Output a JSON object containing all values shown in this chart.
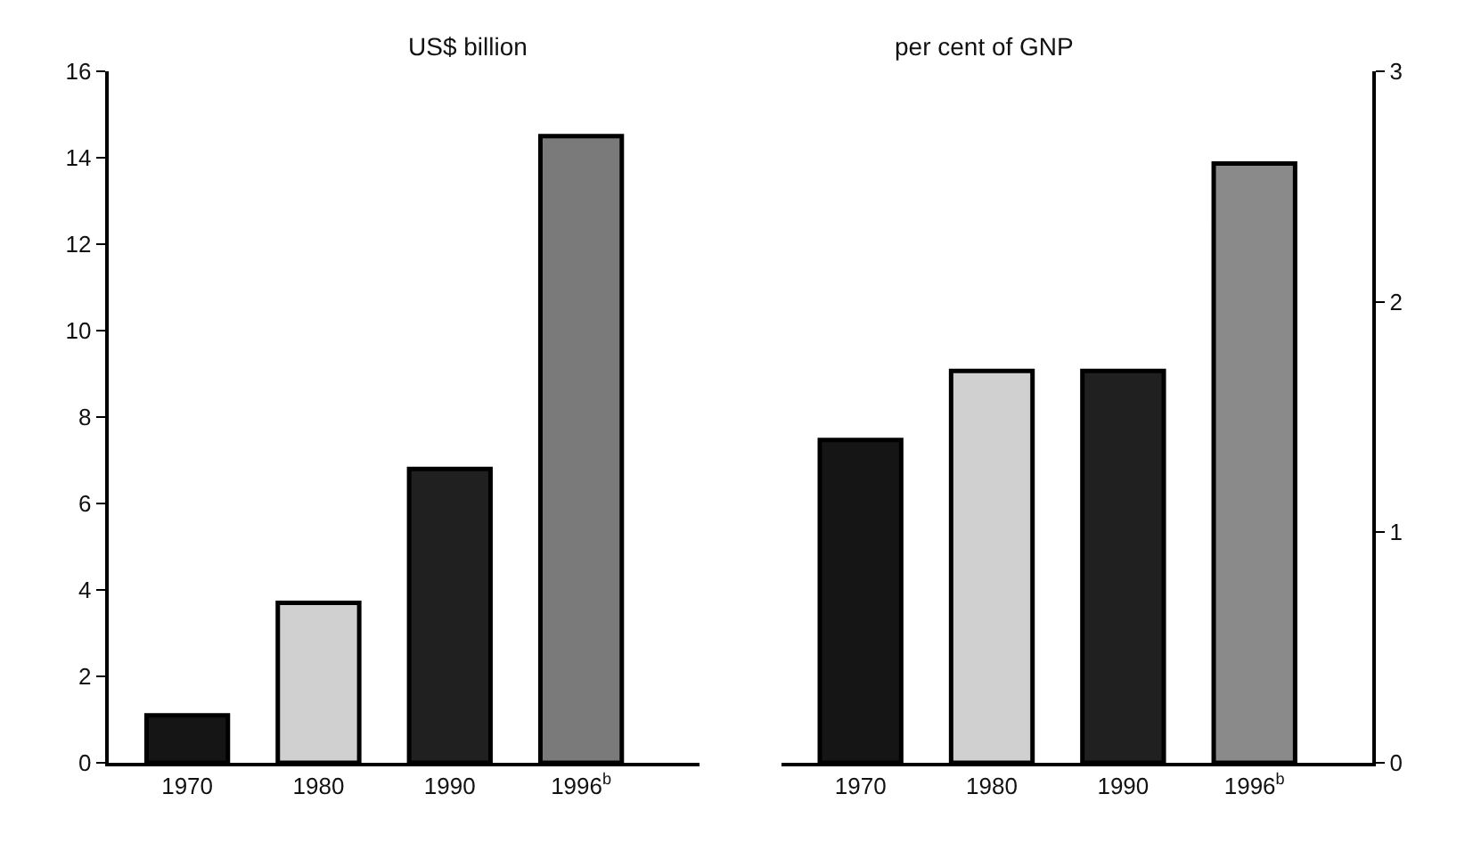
{
  "chart_data": [
    {
      "type": "bar",
      "title": "US$ billion",
      "categories": [
        "1970",
        "1980",
        "1990",
        "1996$^{b}$"
      ],
      "values": [
        1.1,
        3.7,
        6.8,
        14.5
      ],
      "colors": [
        "#151515",
        "#d0d0d0",
        "#202020",
        "#7a7a7a"
      ],
      "ylim": [
        0,
        16
      ],
      "yticks": [
        0,
        2,
        4,
        6,
        8,
        10,
        12,
        14,
        16
      ],
      "grid": false,
      "legend": false
    },
    {
      "type": "bar",
      "title": "per cent of GNP",
      "categories": [
        "1970",
        "1980",
        "1990",
        "1996$^{b}$"
      ],
      "values": [
        1.4,
        1.7,
        1.7,
        2.6
      ],
      "colors": [
        "#151515",
        "#d0d0d0",
        "#202020",
        "#8a8a8a"
      ],
      "ylim": [
        0,
        3
      ],
      "yticks": [
        0,
        1,
        2,
        3
      ],
      "grid": false,
      "legend": false
    }
  ]
}
